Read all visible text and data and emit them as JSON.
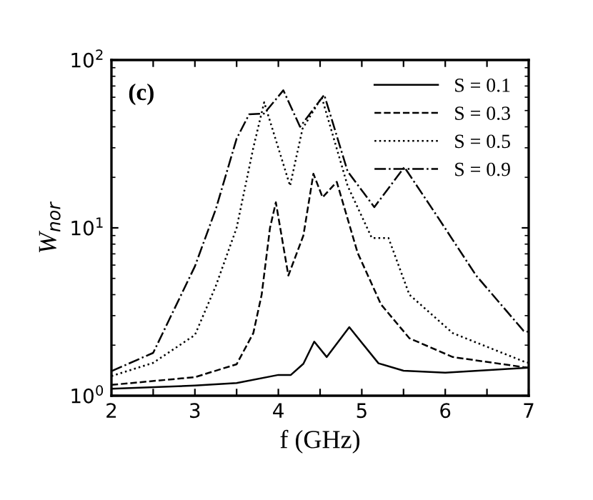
{
  "chart_data": {
    "type": "line",
    "xlabel": "f (GHz)",
    "ylabel": "W$_{nor}$",
    "annotations": [
      "(c)"
    ],
    "log": "y",
    "xlim": [
      2,
      7
    ],
    "ylim": [
      1,
      100
    ],
    "xticks": [
      2,
      {
        "value": 2.5,
        "label": null
      },
      3,
      {
        "value": 3.5,
        "label": null
      },
      4,
      {
        "value": 4.5,
        "label": null
      },
      5,
      {
        "value": 5.5,
        "label": null
      },
      6,
      {
        "value": 6.5,
        "label": null
      },
      7
    ],
    "yticks": [
      {
        "value": 1,
        "label": "10$^{0}$"
      },
      {
        "value": 10,
        "label": "10$^{1}$"
      },
      {
        "value": 100,
        "label": "10$^{2}$"
      }
    ],
    "grid": false,
    "legend": "top right",
    "marker": "none",
    "series": [
      {
        "name": "S = 0.1",
        "color": "#000000",
        "line_style": "solid",
        "x": [
          2,
          3,
          3.5,
          4,
          4.15,
          4.3,
          4.43,
          4.58,
          4.85,
          5.2,
          5.5,
          6,
          7
        ],
        "values": [
          1.1,
          1.15,
          1.19,
          1.33,
          1.33,
          1.55,
          2.1,
          1.7,
          2.56,
          1.56,
          1.41,
          1.37,
          1.47
        ]
      },
      {
        "name": "S = 0.3",
        "color": "#000000",
        "line_style": "dashed",
        "x": [
          2,
          3,
          3.5,
          3.7,
          3.8,
          3.9,
          3.97,
          4.12,
          4.3,
          4.42,
          4.53,
          4.7,
          4.95,
          5.23,
          5.57,
          6.09,
          6.94,
          7
        ],
        "values": [
          1.16,
          1.29,
          1.54,
          2.36,
          4,
          10,
          14.2,
          5.2,
          9,
          21,
          15.2,
          18.8,
          7.1,
          3.5,
          2.2,
          1.7,
          1.48,
          1.47
        ]
      },
      {
        "name": "S = 0.5",
        "color": "#000000",
        "line_style": "dotted",
        "x": [
          2,
          2.5,
          3,
          3.25,
          3.5,
          3.7,
          3.83,
          4.14,
          4.29,
          4.52,
          4.83,
          5.12,
          5.32,
          5.57,
          6.09,
          6.94,
          7
        ],
        "values": [
          1.31,
          1.57,
          2.3,
          4.5,
          10,
          30,
          56,
          17.8,
          39,
          60,
          17.8,
          8.7,
          8.7,
          4,
          2.36,
          1.6,
          1.57
        ]
      },
      {
        "name": "S = 0.9",
        "color": "#000000",
        "line_style": "dashdot",
        "x": [
          2,
          2.5,
          3,
          3.25,
          3.5,
          3.65,
          3.83,
          4.06,
          4.26,
          4.55,
          4.83,
          5.15,
          5.51,
          5.91,
          6.37,
          6.94,
          7
        ],
        "values": [
          1.4,
          1.8,
          5.9,
          12.9,
          34,
          47.5,
          48,
          66,
          40,
          62,
          21.7,
          13.3,
          23,
          11.6,
          5.2,
          2.43,
          2.4
        ]
      }
    ]
  }
}
